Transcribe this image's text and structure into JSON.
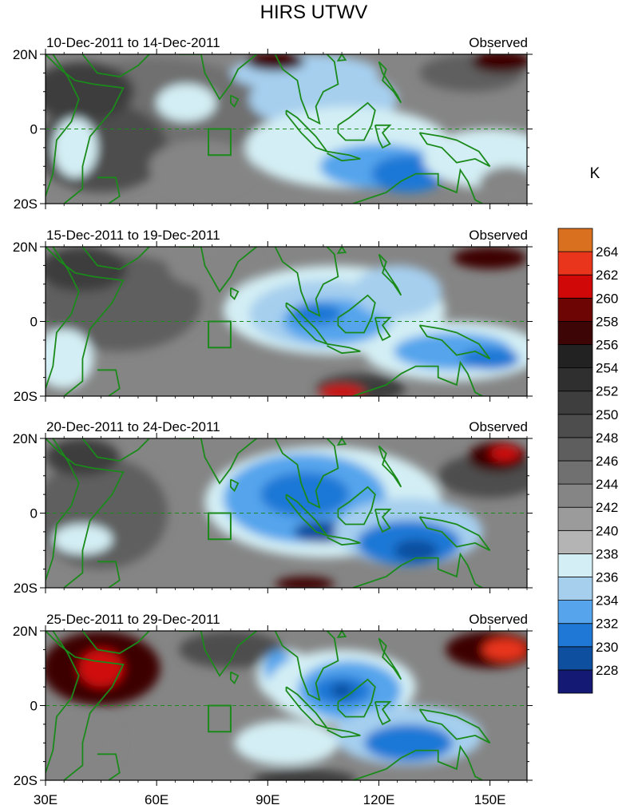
{
  "chart_data": {
    "type": "heatmap",
    "title": "HIRS UTWV",
    "units": "K",
    "x_ticks": [
      "30E",
      "60E",
      "90E",
      "120E",
      "150E"
    ],
    "x_tick_values": [
      30,
      60,
      90,
      120,
      150
    ],
    "xlim": [
      30,
      160
    ],
    "y_ticks": [
      "20N",
      "0",
      "20S"
    ],
    "y_tick_values": [
      20,
      0,
      -20
    ],
    "ylim": [
      -20,
      20
    ],
    "colorbar": {
      "labels": [
        "228",
        "230",
        "232",
        "234",
        "236",
        "238",
        "240",
        "242",
        "244",
        "246",
        "248",
        "250",
        "252",
        "254",
        "256",
        "258",
        "260",
        "262",
        "264"
      ],
      "colors": [
        "#141a73",
        "#0f4fa0",
        "#1f78d6",
        "#55a4ec",
        "#a6cfee",
        "#d3eef4",
        "#b4b4b4",
        "#9b9b9b",
        "#858585",
        "#707070",
        "#5e5e5e",
        "#4d4d4d",
        "#3e3e3e",
        "#2f2f2f",
        "#222222",
        "#3d0505",
        "#6e0505",
        "#d00808",
        "#e8351c",
        "#d9701f"
      ]
    },
    "box_region": {
      "lon": [
        74,
        80
      ],
      "lat": [
        -7,
        0
      ]
    },
    "panels": [
      {
        "period": "10-Dec-2011 to 14-Dec-2011",
        "label": "Observed"
      },
      {
        "period": "15-Dec-2011 to 19-Dec-2011",
        "label": "Observed"
      },
      {
        "period": "20-Dec-2011 to 24-Dec-2011",
        "label": "Observed"
      },
      {
        "period": "25-Dec-2011 to 29-Dec-2011",
        "label": "Observed"
      }
    ]
  }
}
